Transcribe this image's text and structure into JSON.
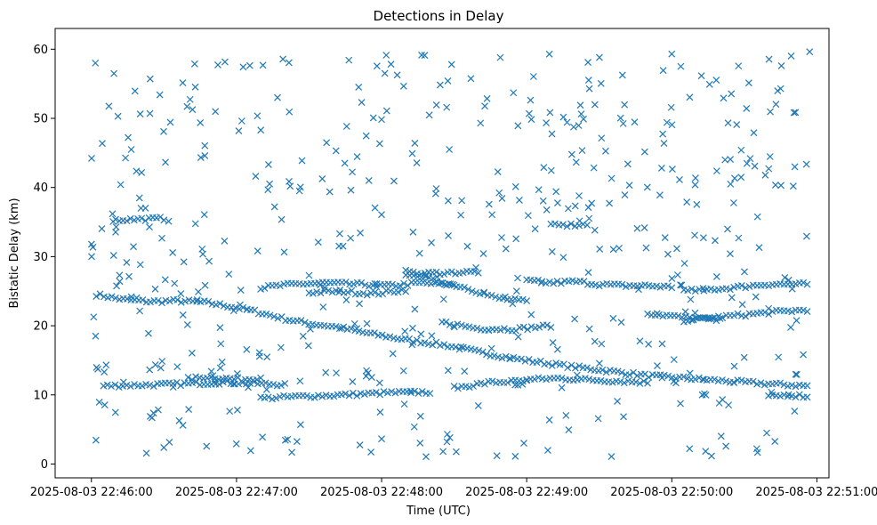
{
  "chart_data": {
    "type": "scatter",
    "title": "Detections in Delay",
    "xlabel": "Time (UTC)",
    "ylabel": "Bistatic Delay (km)",
    "x_ticks": [
      "2025-08-03 22:46:00",
      "2025-08-03 22:47:00",
      "2025-08-03 22:48:00",
      "2025-08-03 22:49:00",
      "2025-08-03 22:50:00",
      "2025-08-03 22:51:00"
    ],
    "y_ticks": [
      "0",
      "10",
      "20",
      "30",
      "40",
      "50",
      "60"
    ],
    "xlim": [
      "2025-08-03 22:45:45",
      "2025-08-03 22:51:05"
    ],
    "ylim": [
      -2,
      63
    ],
    "grid": false,
    "marker": "x",
    "color": "#1f77b4",
    "tracks": [
      {
        "t_start": "2025-08-03 22:46:02",
        "t_end": "2025-08-03 22:50:56",
        "points": [
          [
            0,
            24.5
          ],
          [
            20,
            23.8
          ],
          [
            40,
            23.5
          ],
          [
            60,
            23.6
          ],
          [
            80,
            23.4
          ],
          [
            100,
            22.8
          ],
          [
            120,
            22
          ],
          [
            140,
            21
          ],
          [
            160,
            20.3
          ],
          [
            180,
            19.8
          ],
          [
            200,
            19
          ],
          [
            230,
            18
          ],
          [
            260,
            17.2
          ],
          [
            290,
            16
          ],
          [
            320,
            15
          ],
          [
            350,
            14.2
          ],
          [
            380,
            13.5
          ],
          [
            410,
            12.8
          ],
          [
            440,
            12.4
          ],
          [
            470,
            12
          ],
          [
            500,
            11.6
          ],
          [
            530,
            11.3
          ]
        ]
      },
      {
        "t_start": "2025-08-03 22:46:05",
        "t_end": "2025-08-03 22:47:20",
        "points": [
          [
            0,
            11.3
          ],
          [
            30,
            11.5
          ],
          [
            60,
            11.8
          ],
          [
            90,
            11.5
          ]
        ]
      },
      {
        "t_start": "2025-08-03 22:46:40",
        "t_end": "2025-08-03 22:47:10",
        "points": [
          [
            0,
            12.3
          ],
          [
            30,
            12.6
          ],
          [
            60,
            12.4
          ],
          [
            90,
            12.2
          ],
          [
            120,
            12.5
          ]
        ]
      },
      {
        "t_start": "2025-08-03 22:47:10",
        "t_end": "2025-08-03 22:48:30",
        "points": [
          [
            0,
            25.5
          ],
          [
            30,
            26
          ],
          [
            60,
            26.2
          ],
          [
            90,
            26
          ],
          [
            120,
            25.8
          ],
          [
            150,
            26.2
          ],
          [
            180,
            25.9
          ]
        ]
      },
      {
        "t_start": "2025-08-03 22:47:30",
        "t_end": "2025-08-03 22:48:10",
        "points": [
          [
            0,
            24.8
          ],
          [
            30,
            25
          ],
          [
            60,
            24.6
          ],
          [
            90,
            25.2
          ]
        ]
      },
      {
        "t_start": "2025-08-03 22:47:10",
        "t_end": "2025-08-03 22:48:20",
        "points": [
          [
            0,
            9.5
          ],
          [
            30,
            9.8
          ],
          [
            60,
            10
          ],
          [
            90,
            10.3
          ],
          [
            120,
            10.4
          ]
        ]
      },
      {
        "t_start": "2025-08-03 22:48:10",
        "t_end": "2025-08-03 22:49:00",
        "points": [
          [
            0,
            27.8
          ],
          [
            30,
            26.5
          ],
          [
            60,
            25.5
          ],
          [
            90,
            24
          ],
          [
            120,
            23.5
          ]
        ]
      },
      {
        "t_start": "2025-08-03 22:48:25",
        "t_end": "2025-08-03 22:49:10",
        "points": [
          [
            0,
            20.5
          ],
          [
            30,
            19.6
          ],
          [
            60,
            19.5
          ],
          [
            90,
            20
          ]
        ]
      },
      {
        "t_start": "2025-08-03 22:48:30",
        "t_end": "2025-08-03 22:49:00",
        "points": [
          [
            0,
            11
          ],
          [
            30,
            11.8
          ],
          [
            60,
            12
          ]
        ]
      },
      {
        "t_start": "2025-08-03 22:49:00",
        "t_end": "2025-08-03 22:50:00",
        "points": [
          [
            0,
            26.5
          ],
          [
            30,
            26.2
          ],
          [
            60,
            26.4
          ],
          [
            90,
            26
          ],
          [
            120,
            25.8
          ],
          [
            150,
            25.8
          ],
          [
            180,
            25.6
          ]
        ]
      },
      {
        "t_start": "2025-08-03 22:49:00",
        "t_end": "2025-08-03 22:49:50",
        "points": [
          [
            0,
            12.2
          ],
          [
            30,
            12.4
          ],
          [
            60,
            12.2
          ],
          [
            90,
            12
          ],
          [
            120,
            11.8
          ]
        ]
      },
      {
        "t_start": "2025-08-03 22:49:50",
        "t_end": "2025-08-03 22:50:20",
        "points": [
          [
            0,
            21.8
          ],
          [
            30,
            21.2
          ],
          [
            60,
            20.8
          ]
        ]
      },
      {
        "t_start": "2025-08-03 22:50:05",
        "t_end": "2025-08-03 22:50:56",
        "points": [
          [
            0,
            20.8
          ],
          [
            30,
            21.2
          ],
          [
            60,
            21.6
          ],
          [
            90,
            22
          ],
          [
            120,
            22.3
          ]
        ]
      },
      {
        "t_start": "2025-08-03 22:50:05",
        "t_end": "2025-08-03 22:50:56",
        "points": [
          [
            0,
            25
          ],
          [
            30,
            25.4
          ],
          [
            60,
            26
          ],
          [
            90,
            26
          ]
        ]
      },
      {
        "t_start": "2025-08-03 22:50:40",
        "t_end": "2025-08-03 22:50:56",
        "points": [
          [
            0,
            9.7
          ],
          [
            30,
            10
          ],
          [
            60,
            9.8
          ]
        ]
      },
      {
        "t_start": "2025-08-03 22:46:10",
        "t_end": "2025-08-03 22:46:30",
        "points": [
          [
            0,
            35.3
          ],
          [
            30,
            35.5
          ]
        ]
      },
      {
        "t_start": "2025-08-03 22:48:10",
        "t_end": "2025-08-03 22:48:40",
        "points": [
          [
            0,
            27.5
          ],
          [
            30,
            27.8
          ]
        ]
      },
      {
        "t_start": "2025-08-03 22:49:10",
        "t_end": "2025-08-03 22:49:25",
        "points": [
          [
            0,
            34.5
          ],
          [
            30,
            34.6
          ]
        ]
      }
    ],
    "noise": {
      "count": 520,
      "seed": 7,
      "t_start": "2025-08-03 22:46:00",
      "t_end": "2025-08-03 22:50:57",
      "delay_min": 1,
      "delay_max": 60
    }
  }
}
